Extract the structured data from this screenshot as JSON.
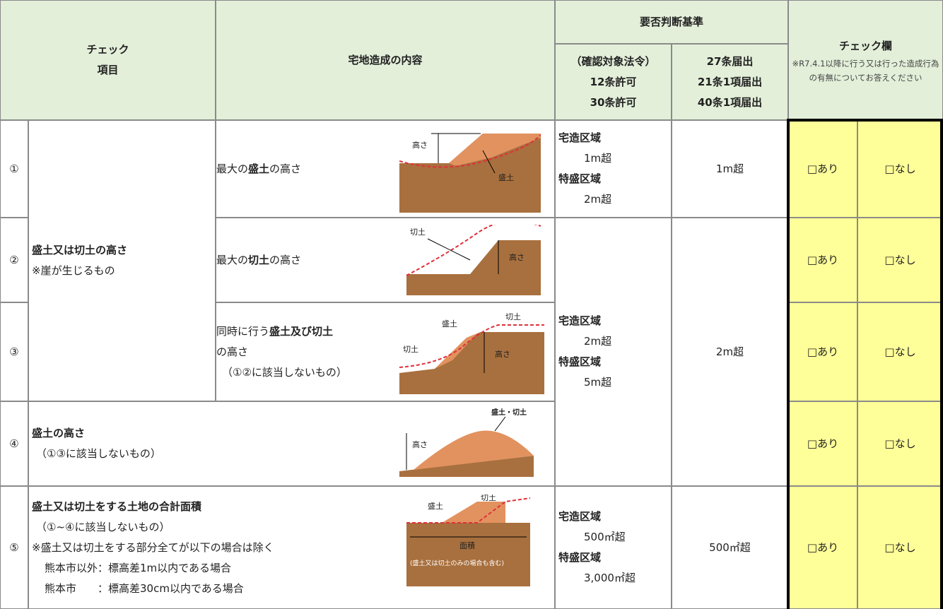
{
  "header": {
    "check_item": [
      "チェック",
      "項目"
    ],
    "content": "宅地造成の内容",
    "criteria": "要否判断基準",
    "law_a": [
      "（確認対象法令）",
      "12条許可",
      "30条許可"
    ],
    "law_b": [
      "27条届出",
      "21条1項届出",
      "40条1項届出"
    ],
    "check_title": "チェック欄",
    "check_note": "※R7.4.1以降に行う又は行った造成行為の有無についてお答えください"
  },
  "group_item": [
    "盛土又は切土の高さ",
    "※崖が生じるもの"
  ],
  "group_criteria_a": [
    "宅造区域",
    "2m超",
    "特盛区域",
    "5m超"
  ],
  "group_criteria_b": "2m超",
  "rows": [
    {
      "number": "①",
      "content": [
        "最大の",
        "盛土",
        "の高さ"
      ],
      "figure": [
        "高さ",
        "盛土"
      ],
      "criteria_a": [
        "宅造区域",
        "1m超",
        "特盛区域",
        "2m超"
      ],
      "criteria_b": "1m超",
      "options": [
        "□あり",
        "□なし"
      ]
    },
    {
      "number": "②",
      "content": [
        "最大の",
        "切土",
        "の高さ"
      ],
      "figure": [
        "切土",
        "高さ"
      ],
      "options": [
        "□あり",
        "□なし"
      ]
    },
    {
      "number": "③",
      "content": [
        "同時に行う",
        "盛土及び切土",
        "の高さ",
        "（①②に該当しないもの）"
      ],
      "figure": [
        "盛土",
        "切土",
        "切土",
        "高さ"
      ],
      "options": [
        "□あり",
        "□なし"
      ]
    },
    {
      "number": "④",
      "item": [
        "盛土の高さ",
        "（①③に該当しないもの）"
      ],
      "figure": [
        "盛土・切土",
        "高さ"
      ],
      "options": [
        "□あり",
        "□なし"
      ]
    },
    {
      "number": "⑤",
      "item": [
        "盛土又は切土をする土地の合計面積",
        "（①~④に該当しないもの）",
        "※盛土又は切土をする部分全てが以下の場合は除く",
        "熊本市以外：標高差1m以内である場合",
        "熊本市　　：標高差30cm以内である場合"
      ],
      "figure": [
        "盛土",
        "切土",
        "面積",
        "(盛土又は切土のみの場合も含む)"
      ],
      "criteria_a": [
        "宅造区域",
        "500㎡超",
        "特盛区域",
        "3,000㎡超"
      ],
      "criteria_b": "500㎡超",
      "options": [
        "□あり",
        "□なし"
      ]
    }
  ]
}
